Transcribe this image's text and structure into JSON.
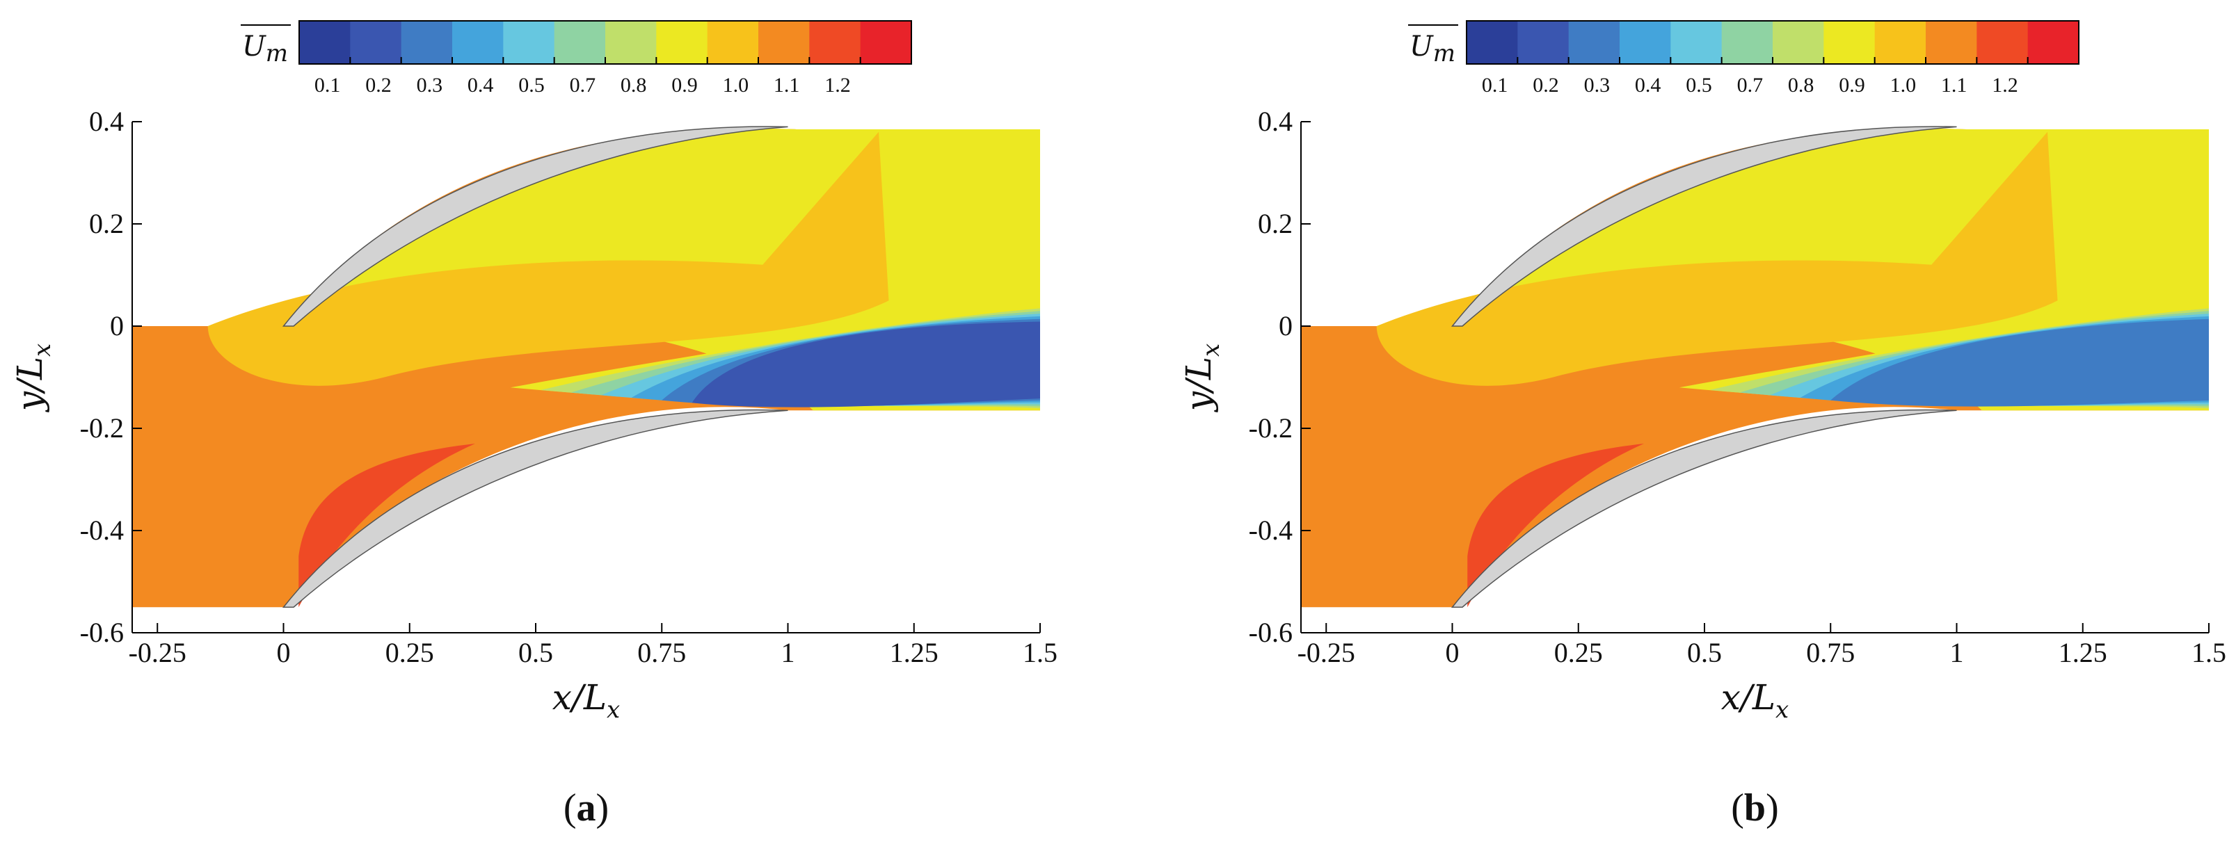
{
  "chart_data": [
    {
      "type": "heatmap",
      "panel_label_letter": "a",
      "colorbar": {
        "title": "U",
        "title_sub": "m",
        "levels": [
          0.1,
          0.2,
          0.3,
          0.4,
          0.5,
          0.7,
          0.8,
          0.9,
          1.0,
          1.1,
          1.2
        ],
        "tick_labels": [
          "0.1",
          "0.2",
          "0.3",
          "0.4",
          "0.5",
          "0.7",
          "0.8",
          "0.9",
          "1.0",
          "1.1",
          "1.2"
        ],
        "colors": [
          "#2b3f99",
          "#3a56b0",
          "#3f7cc4",
          "#44a4dc",
          "#66c7e0",
          "#8fd3a3",
          "#c0df6a",
          "#ece822",
          "#f7c21b",
          "#f38a21",
          "#ef4a25",
          "#e8232a"
        ]
      },
      "xlim": [
        -0.3,
        1.5
      ],
      "ylim": [
        -0.6,
        0.4
      ],
      "xticks": [
        -0.25,
        0,
        0.25,
        0.5,
        0.75,
        1,
        1.25,
        1.5
      ],
      "xtick_labels": [
        "-0.25",
        "0",
        "0.25",
        "0.5",
        "0.75",
        "1",
        "1.25",
        "1.5"
      ],
      "yticks": [
        -0.6,
        -0.4,
        -0.2,
        0,
        0.2,
        0.4
      ],
      "ytick_labels": [
        "-0.6",
        "-0.4",
        "-0.2",
        "0",
        "0.2",
        "0.4"
      ],
      "xlabel": "x/L",
      "xlabel_sub": "x",
      "ylabel": "y/L",
      "ylabel_sub": "x"
    },
    {
      "type": "heatmap",
      "panel_label_letter": "b",
      "colorbar": {
        "title": "U",
        "title_sub": "m",
        "levels": [
          0.1,
          0.2,
          0.3,
          0.4,
          0.5,
          0.7,
          0.8,
          0.9,
          1.0,
          1.1,
          1.2
        ],
        "tick_labels": [
          "0.1",
          "0.2",
          "0.3",
          "0.4",
          "0.5",
          "0.7",
          "0.8",
          "0.9",
          "1.0",
          "1.1",
          "1.2"
        ],
        "colors": [
          "#2b3f99",
          "#3a56b0",
          "#3f7cc4",
          "#44a4dc",
          "#66c7e0",
          "#8fd3a3",
          "#c0df6a",
          "#ece822",
          "#f7c21b",
          "#f38a21",
          "#ef4a25",
          "#e8232a"
        ]
      },
      "xlim": [
        -0.3,
        1.5
      ],
      "ylim": [
        -0.6,
        0.4
      ],
      "xticks": [
        -0.25,
        0,
        0.25,
        0.5,
        0.75,
        1,
        1.25,
        1.5
      ],
      "xtick_labels": [
        "-0.25",
        "0",
        "0.25",
        "0.5",
        "0.75",
        "1",
        "1.25",
        "1.5"
      ],
      "yticks": [
        -0.6,
        -0.4,
        -0.2,
        0,
        0.2,
        0.4
      ],
      "ytick_labels": [
        "-0.6",
        "-0.4",
        "-0.2",
        "0",
        "0.2",
        "0.4"
      ],
      "xlabel": "x/L",
      "xlabel_sub": "x",
      "ylabel": "y/L",
      "ylabel_sub": "x"
    }
  ]
}
